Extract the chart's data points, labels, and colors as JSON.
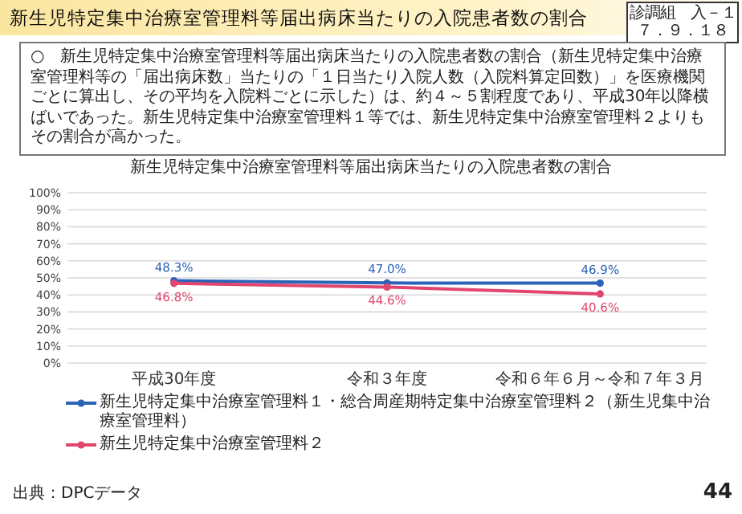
{
  "chart_data": {
    "type": "line",
    "title": "新生児特定集中治療室管理料等届出病床当たりの入院患者数の割合",
    "categories": [
      "平成30年度",
      "令和３年度",
      "令和６年６月～令和７年３月"
    ],
    "series": [
      {
        "name": "新生児特定集中治療室管理料１・総合周産期特定集中治療室管理料２（新生児集中治療室管理料）",
        "color": "#2b63b8",
        "values": [
          48.3,
          47.0,
          46.9
        ],
        "value_labels": [
          "48.3%",
          "47.0%",
          "46.9%"
        ]
      },
      {
        "name": "新生児特定集中治療室管理料２",
        "color": "#e2456e",
        "values": [
          46.8,
          44.6,
          40.6
        ],
        "value_labels": [
          "46.8%",
          "44.6%",
          "40.6%"
        ]
      }
    ],
    "ylim": [
      0,
      100
    ],
    "yticks": [
      {
        "value": 0,
        "label": "0%"
      },
      {
        "value": 10,
        "label": "10%"
      },
      {
        "value": 20,
        "label": "20%"
      },
      {
        "value": 30,
        "label": "30%"
      },
      {
        "value": 40,
        "label": "40%"
      },
      {
        "value": 50,
        "label": "50%"
      },
      {
        "value": 60,
        "label": "60%"
      },
      {
        "value": 70,
        "label": "70%"
      },
      {
        "value": 80,
        "label": "80%"
      },
      {
        "value": 90,
        "label": "90%"
      },
      {
        "value": 100,
        "label": "100%"
      }
    ],
    "grid": "y",
    "legend": "bottom",
    "marker": "circle",
    "line_style": "solid",
    "annotations": [
      "新生児特定集中治療室管理料等届出病床当たりの入院患者数の割合",
      "診調組　入－１",
      "７．９．１８",
      "○　新生児特定集中治療室管理料等届出病床当たりの入院患者数の割合",
      "（新生児特定集中治療室管理料等の「届出病床数」当たりの「１日当たり入院人数（入院料算定回数）」を医療機関ごとに算出し、その平均を入院料ごとに示した）",
      "は、約４～５割程度であり、平成30年以降横ばいであった。新生児特定集中治療室管理料１等では、新生児特定集中治療室管理料２よりもその割合が高かった。",
      "出典：DPCデータ",
      "44"
    ]
  }
}
